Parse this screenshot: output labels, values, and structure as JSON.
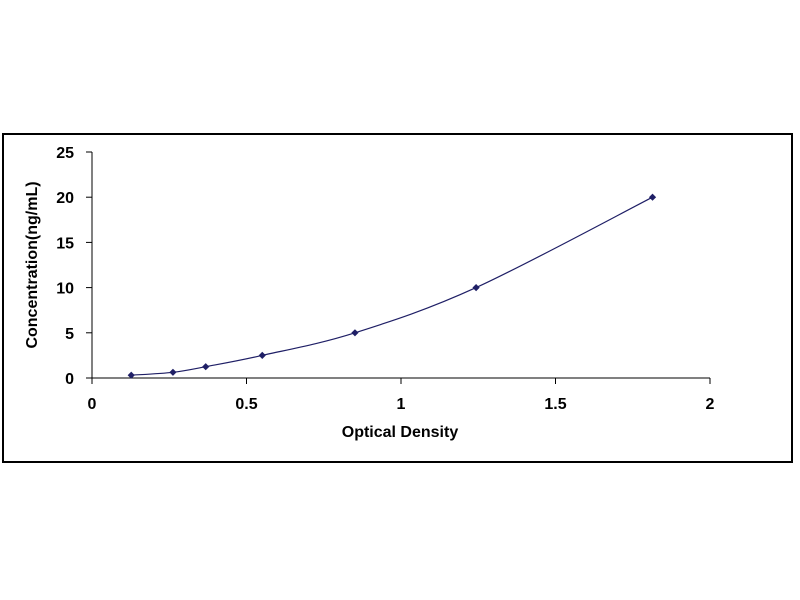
{
  "chart_data": {
    "type": "scatter",
    "title": "",
    "xlabel": "Optical Density",
    "ylabel": "Concentration(ng/mL)",
    "xlim": [
      0,
      2
    ],
    "ylim": [
      0,
      25
    ],
    "xticks": [
      "0",
      "0.5",
      "1",
      "1.5",
      "2"
    ],
    "yticks": [
      "0",
      "5",
      "10",
      "15",
      "20",
      "25"
    ],
    "grid": false,
    "legend": "none",
    "trendline": "smooth curve through points",
    "series": [
      {
        "x": [
          0.127,
          0.262,
          0.368,
          0.551,
          0.851,
          1.243,
          1.814
        ],
        "y": [
          0.31,
          0.63,
          1.25,
          2.5,
          5,
          10,
          20
        ]
      }
    ],
    "colors": {
      "series": "#1f1f66",
      "axis": "#000000"
    }
  }
}
